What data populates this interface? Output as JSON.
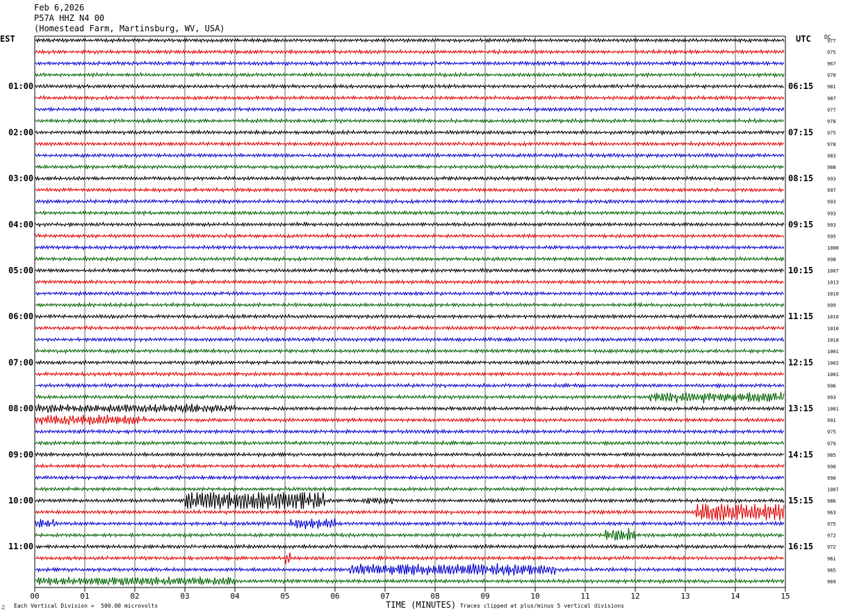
{
  "header": {
    "date": "Feb 6,2026",
    "station": "P57A HHZ N4 00",
    "location": "(Homestead Farm, Martinsburg, WV, USA)"
  },
  "left_timezone": "EST",
  "right_timezone": "UTC",
  "dc_header": "DC",
  "footer": {
    "vertical_division": "Each Vertical Division =  500.00 microvolts",
    "axis_title": "TIME (MINUTES)",
    "clip_note": "Traces clipped at plus/minus 5 vertical divisions",
    "mark": "♫"
  },
  "colors": [
    "#000000",
    "#e00000",
    "#0000d0",
    "#006400"
  ],
  "chart_data": {
    "type": "line",
    "title": "P57A HHZ N4 00",
    "xlabel": "TIME (MINUTES)",
    "ylabel": "",
    "xlim": [
      0,
      15
    ],
    "x_ticks": [
      "00",
      "01",
      "02",
      "03",
      "04",
      "05",
      "06",
      "07",
      "08",
      "09",
      "10",
      "11",
      "12",
      "13",
      "14",
      "15"
    ],
    "left_hour_labels": [
      "01:00",
      "02:00",
      "03:00",
      "04:00",
      "05:00",
      "06:00",
      "07:00",
      "08:00",
      "09:00",
      "10:00",
      "11:00"
    ],
    "right_hour_labels": [
      "06:15",
      "07:15",
      "08:15",
      "09:15",
      "10:15",
      "11:15",
      "12:15",
      "13:15",
      "14:15",
      "15:15",
      "16:15"
    ],
    "dc_offsets": [
      977,
      975,
      967,
      970,
      981,
      987,
      977,
      978,
      975,
      978,
      983,
      988,
      993,
      997,
      993,
      993,
      993,
      995,
      1000,
      998,
      1007,
      1013,
      1010,
      999,
      1010,
      1010,
      1018,
      1001,
      1002,
      1001,
      996,
      993,
      1001,
      991,
      975,
      979,
      985,
      990,
      990,
      1007,
      986,
      963,
      975,
      972,
      972,
      961,
      965,
      969
    ],
    "activity": [
      [],
      [],
      [],
      [],
      [],
      [],
      [],
      [],
      [],
      [],
      [],
      [],
      [],
      [],
      [],
      [],
      [],
      [],
      [],
      [],
      [],
      [],
      [],
      [],
      [],
      [],
      [],
      [],
      [],
      [],
      [],
      [
        [
          12.3,
          15,
          3
        ]
      ],
      [
        [
          0,
          4.0,
          2.5
        ]
      ],
      [
        [
          0,
          2.2,
          3
        ]
      ],
      [],
      [],
      [],
      [],
      [],
      [],
      [
        [
          3.0,
          5.8,
          6
        ],
        [
          6.5,
          7.2,
          2
        ]
      ],
      [
        [
          13.2,
          15,
          6
        ]
      ],
      [
        [
          0,
          0.4,
          2.5
        ],
        [
          5.1,
          6.0,
          3
        ]
      ],
      [
        [
          11.4,
          12.0,
          4
        ]
      ],
      [],
      [
        [
          5.0,
          5.1,
          5
        ]
      ],
      [
        [
          6.3,
          10.4,
          3.5
        ]
      ],
      [
        [
          0,
          4.0,
          2.5
        ]
      ]
    ]
  }
}
